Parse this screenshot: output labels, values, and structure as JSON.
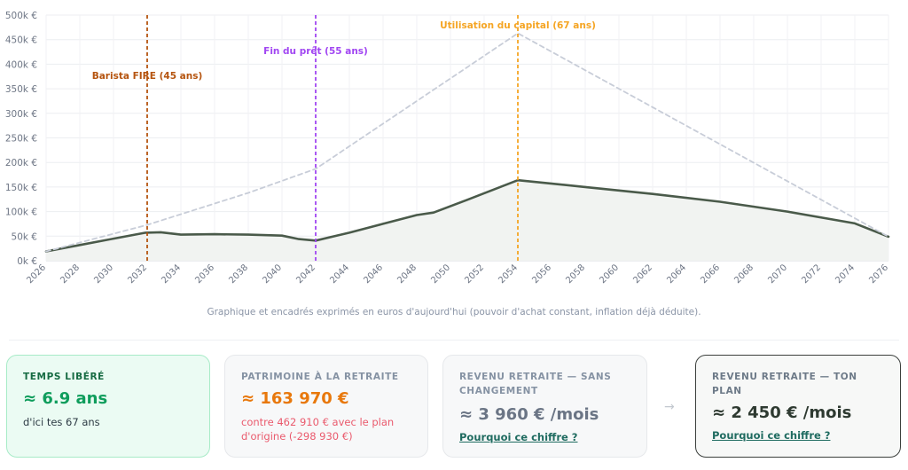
{
  "chart_data": {
    "type": "line",
    "ylim": [
      0,
      500000
    ],
    "xlim": [
      2026,
      2076
    ],
    "y_ticks": [
      {
        "v": 0,
        "label": "0k €"
      },
      {
        "v": 50000,
        "label": "50k €"
      },
      {
        "v": 100000,
        "label": "100k €"
      },
      {
        "v": 150000,
        "label": "150k €"
      },
      {
        "v": 200000,
        "label": "200k €"
      },
      {
        "v": 250000,
        "label": "250k €"
      },
      {
        "v": 300000,
        "label": "300k €"
      },
      {
        "v": 350000,
        "label": "350k €"
      },
      {
        "v": 400000,
        "label": "400k €"
      },
      {
        "v": 450000,
        "label": "450k €"
      },
      {
        "v": 500000,
        "label": "500k €"
      }
    ],
    "x_ticks": [
      2026,
      2028,
      2030,
      2032,
      2034,
      2036,
      2038,
      2040,
      2042,
      2044,
      2046,
      2048,
      2050,
      2052,
      2054,
      2056,
      2058,
      2060,
      2062,
      2064,
      2066,
      2068,
      2070,
      2072,
      2074,
      2076
    ],
    "grid": true,
    "series": [
      {
        "color": "#4a5a4a",
        "fill": "#f1f3f1",
        "points": [
          [
            2026,
            19000
          ],
          [
            2028,
            32000
          ],
          [
            2030,
            45000
          ],
          [
            2031.9,
            57000
          ],
          [
            2032.8,
            58000
          ],
          [
            2034,
            53000
          ],
          [
            2036,
            54000
          ],
          [
            2038,
            53000
          ],
          [
            2040,
            51000
          ],
          [
            2041,
            44000
          ],
          [
            2042,
            41000
          ],
          [
            2044,
            57000
          ],
          [
            2046,
            75000
          ],
          [
            2048,
            93000
          ],
          [
            2049,
            98000
          ],
          [
            2051,
            124000
          ],
          [
            2054,
            163970
          ],
          [
            2058,
            150000
          ],
          [
            2062,
            136000
          ],
          [
            2066,
            120000
          ],
          [
            2070,
            100000
          ],
          [
            2074,
            76000
          ],
          [
            2076,
            49000
          ]
        ]
      },
      {
        "color": "#c8cdd8",
        "dashed": true,
        "points": [
          [
            2026,
            19000
          ],
          [
            2032,
            73000
          ],
          [
            2038,
            138000
          ],
          [
            2042,
            187000
          ],
          [
            2054,
            462910
          ],
          [
            2076,
            49000
          ]
        ]
      }
    ],
    "markers": [
      {
        "x": 2032,
        "label": "Barista FIRE (45 ans)",
        "color": "#b5540f"
      },
      {
        "x": 2042,
        "label": "Fin du prêt (55 ans)",
        "color": "#a146f2"
      },
      {
        "x": 2054,
        "label": "Utilisation du capital (67 ans)",
        "color": "#f5a524"
      }
    ]
  },
  "caption": "Graphique et encadrés exprimés en euros d'aujourd'hui (pouvoir d'achat constant, inflation déjà déduite).",
  "cards": {
    "free_time": {
      "title": "TEMPS LIBÉRÉ",
      "value": "≈ 6.9 ans",
      "sub": "d'ici tes 67 ans"
    },
    "wealth": {
      "title": "PATRIMOINE À LA RETRAITE",
      "value": "≈ 163 970 €",
      "sub": "contre 462 910 € avec le plan d'origine (-298 930 €)"
    },
    "income_unchanged": {
      "title": "REVENU RETRAITE — SANS CHANGEMENT",
      "value": "≈ 3 960 € /mois",
      "link": "Pourquoi ce chiffre ?"
    },
    "income_plan": {
      "title": "REVENU RETRAITE — TON PLAN",
      "value": "≈ 2 450 € /mois",
      "link": "Pourquoi ce chiffre ?"
    },
    "arrow": "→"
  }
}
